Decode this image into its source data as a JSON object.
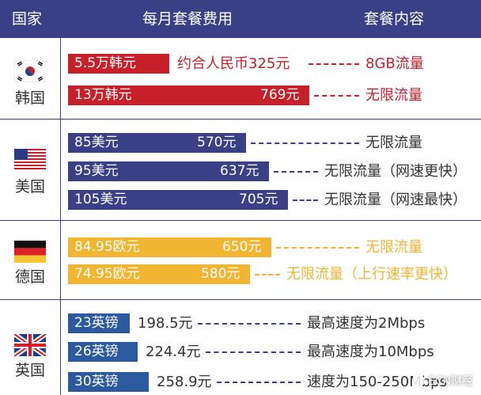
{
  "header": {
    "col_country": "国家",
    "col_cost": "每月套餐费用",
    "col_content": "套餐内容"
  },
  "colors": {
    "header": "#3b3f86",
    "korea": "#c8202a",
    "usa": "#3b3f86",
    "germany": "#f2b531",
    "uk": "#2d5a9e",
    "text_dark": "#333333"
  },
  "countries": [
    {
      "name": "韩国",
      "flag": "korea-flag-icon"
    },
    {
      "name": "美国",
      "flag": "usa-flag-icon"
    },
    {
      "name": "德国",
      "flag": "germany-flag-icon"
    },
    {
      "name": "英国",
      "flag": "uk-flag-icon"
    }
  ],
  "chart_data": {
    "type": "bar",
    "orientation": "horizontal",
    "unit": "元",
    "rows": [
      {
        "country": "韩国",
        "local_price": "5.5万韩元",
        "rmb_label": "约合人民币325元",
        "rmb": 325,
        "content": "8GB流量"
      },
      {
        "country": "韩国",
        "local_price": "13万韩元",
        "rmb_label": "769元",
        "rmb": 769,
        "content": "无限流量"
      },
      {
        "country": "美国",
        "local_price": "85美元",
        "rmb_label": "570元",
        "rmb": 570,
        "content": "无限流量"
      },
      {
        "country": "美国",
        "local_price": "95美元",
        "rmb_label": "637元",
        "rmb": 637,
        "content": "无限流量（网速更快）"
      },
      {
        "country": "美国",
        "local_price": "105美元",
        "rmb_label": "705元",
        "rmb": 705,
        "content": "无限流量（网速最快）"
      },
      {
        "country": "德国",
        "local_price": "84.95欧元",
        "rmb_label": "650元",
        "rmb": 650,
        "content": "无限流量"
      },
      {
        "country": "德国",
        "local_price": "74.95欧元",
        "rmb_label": "580元",
        "rmb": 580,
        "content": "无限流量（上行速率更快）"
      },
      {
        "country": "英国",
        "local_price": "23英镑",
        "rmb_label": "198.5元",
        "rmb": 198.5,
        "content": "最高速度为2Mbps"
      },
      {
        "country": "英国",
        "local_price": "26英镑",
        "rmb_label": "224.4元",
        "rmb": 224.4,
        "content": "最高速度为10Mbps"
      },
      {
        "country": "英国",
        "local_price": "30英镑",
        "rmb_label": "258.9元",
        "rmb": 258.9,
        "content": "速度为150-250Mbps"
      }
    ]
  },
  "watermark": {
    "text": "ECN财经",
    "icon": "wechat-icon"
  }
}
